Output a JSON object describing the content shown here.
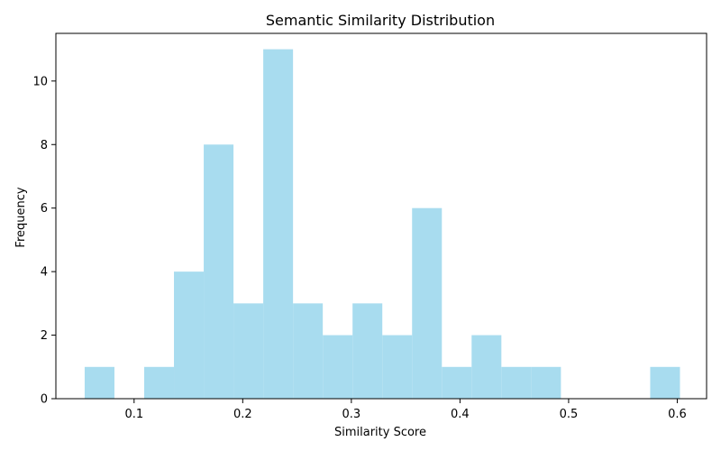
{
  "chart_data": {
    "type": "bar",
    "title": "Semantic Similarity Distribution",
    "xlabel": "Similarity Score",
    "ylabel": "Frequency",
    "bar_color": "#a8dcef",
    "xlim": [
      0.028,
      0.627
    ],
    "ylim": [
      0,
      11.5
    ],
    "x_ticks": [
      0.1,
      0.2,
      0.3,
      0.4,
      0.5,
      0.6
    ],
    "x_tick_labels": [
      "0.1",
      "0.2",
      "0.3",
      "0.4",
      "0.5",
      "0.6"
    ],
    "y_ticks": [
      0,
      2,
      4,
      6,
      8,
      10
    ],
    "y_tick_labels": [
      "0",
      "2",
      "4",
      "6",
      "8",
      "10"
    ],
    "bins": [
      {
        "start": 0.0545,
        "end": 0.0819,
        "count": 1
      },
      {
        "start": 0.0819,
        "end": 0.1093,
        "count": 0
      },
      {
        "start": 0.1093,
        "end": 0.1367,
        "count": 1
      },
      {
        "start": 0.1367,
        "end": 0.1641,
        "count": 4
      },
      {
        "start": 0.1641,
        "end": 0.1915,
        "count": 8
      },
      {
        "start": 0.1915,
        "end": 0.2189,
        "count": 3
      },
      {
        "start": 0.2189,
        "end": 0.2463,
        "count": 11
      },
      {
        "start": 0.2463,
        "end": 0.2737,
        "count": 3
      },
      {
        "start": 0.2737,
        "end": 0.3011,
        "count": 2
      },
      {
        "start": 0.3011,
        "end": 0.3285,
        "count": 3
      },
      {
        "start": 0.3285,
        "end": 0.3559,
        "count": 2
      },
      {
        "start": 0.3559,
        "end": 0.3833,
        "count": 6
      },
      {
        "start": 0.3833,
        "end": 0.4107,
        "count": 1
      },
      {
        "start": 0.4107,
        "end": 0.4381,
        "count": 2
      },
      {
        "start": 0.4381,
        "end": 0.4655,
        "count": 1
      },
      {
        "start": 0.4655,
        "end": 0.4929,
        "count": 1
      },
      {
        "start": 0.4929,
        "end": 0.5203,
        "count": 0
      },
      {
        "start": 0.5203,
        "end": 0.5477,
        "count": 0
      },
      {
        "start": 0.5477,
        "end": 0.5751,
        "count": 0
      },
      {
        "start": 0.5751,
        "end": 0.6025,
        "count": 1
      }
    ]
  }
}
